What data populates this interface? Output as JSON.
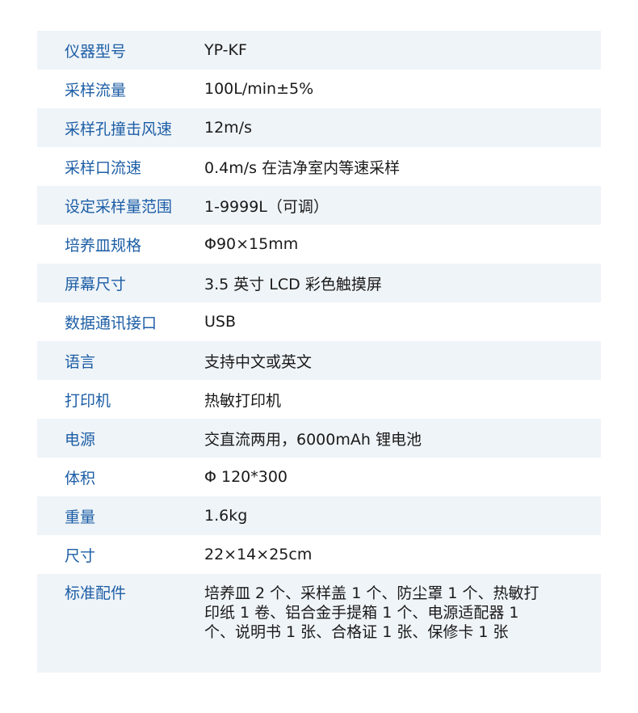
{
  "specs": [
    {
      "label": "仪器型号",
      "value": "YP-KF"
    },
    {
      "label": "采样流量",
      "value": "100L/min±5%"
    },
    {
      "label": "采样孔撞击风速",
      "value": "12m/s"
    },
    {
      "label": "采样口流速",
      "value": "0.4m/s 在洁净室内等速采样"
    },
    {
      "label": "设定采样量范围",
      "value": "1-9999L（可调）"
    },
    {
      "label": "培养皿规格",
      "value": "Φ90×15mm"
    },
    {
      "label": "屏幕尺寸",
      "value": "3.5 英寸 LCD 彩色触摸屏"
    },
    {
      "label": "数据通讯接口",
      "value": "USB"
    },
    {
      "label": "语言",
      "value": "支持中文或英文"
    },
    {
      "label": "打印机",
      "value": "热敏打印机"
    },
    {
      "label": "电源",
      "value": "交直流两用，6000mAh 锂电池"
    },
    {
      "label": "体积",
      "value": "Φ 120*300"
    },
    {
      "label": "重量",
      "value": "1.6kg"
    },
    {
      "label": "尺寸",
      "value": "22×14×25cm"
    },
    {
      "label": "标准配件",
      "value": "培养皿 2 个、采样盖 1 个、防尘罩 1 个、热敏打印纸 1 卷、铝合金手提箱 1 个、电源适配器 1 个、说明书 1 张、合格证 1 张、保修卡 1 张"
    }
  ]
}
